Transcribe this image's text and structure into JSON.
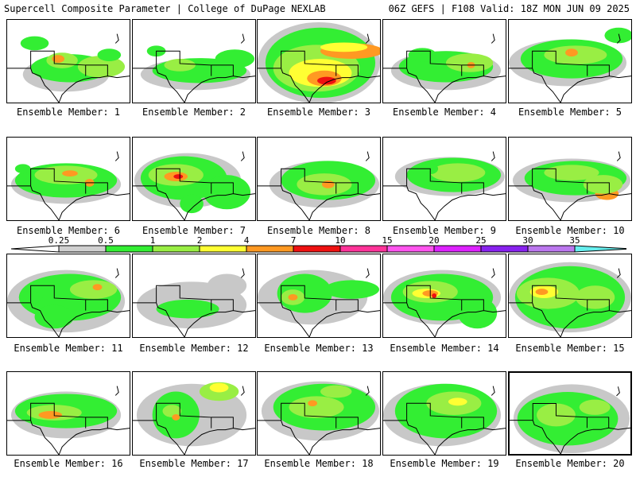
{
  "header": {
    "title": "Supercell Composite Parameter | College of DuPage NEXLAB",
    "run_info": "06Z GEFS | F108 Valid: 18Z MON JUN 09 2025"
  },
  "colorbar": {
    "ticks": [
      "0.25",
      "0.5",
      "1",
      "2",
      "4",
      "7",
      "10",
      "15",
      "20",
      "25",
      "30",
      "35"
    ],
    "colors": [
      "#d0d0d0",
      "#33ee33",
      "#99ee44",
      "#ffff33",
      "#ff9922",
      "#ee1111",
      "#ff3399",
      "#ff55ee",
      "#dd22ff",
      "#8822ee",
      "#bb77ee",
      "#66eeee"
    ]
  },
  "panels": [
    {
      "label": "Ensemble Member: 1"
    },
    {
      "label": "Ensemble Member: 2"
    },
    {
      "label": "Ensemble Member: 3"
    },
    {
      "label": "Ensemble Member: 4"
    },
    {
      "label": "Ensemble Member: 5"
    },
    {
      "label": "Ensemble Member: 6"
    },
    {
      "label": "Ensemble Member: 7"
    },
    {
      "label": "Ensemble Member: 8"
    },
    {
      "label": "Ensemble Member: 9"
    },
    {
      "label": "Ensemble Member: 10"
    },
    {
      "label": "Ensemble Member: 11"
    },
    {
      "label": "Ensemble Member: 12"
    },
    {
      "label": "Ensemble Member: 13"
    },
    {
      "label": "Ensemble Member: 14"
    },
    {
      "label": "Ensemble Member: 15"
    },
    {
      "label": "Ensemble Member: 16"
    },
    {
      "label": "Ensemble Member: 17"
    },
    {
      "label": "Ensemble Member: 18"
    },
    {
      "label": "Ensemble Member: 19"
    },
    {
      "label": "Ensemble Member: 20"
    }
  ],
  "selected_member": 20
}
